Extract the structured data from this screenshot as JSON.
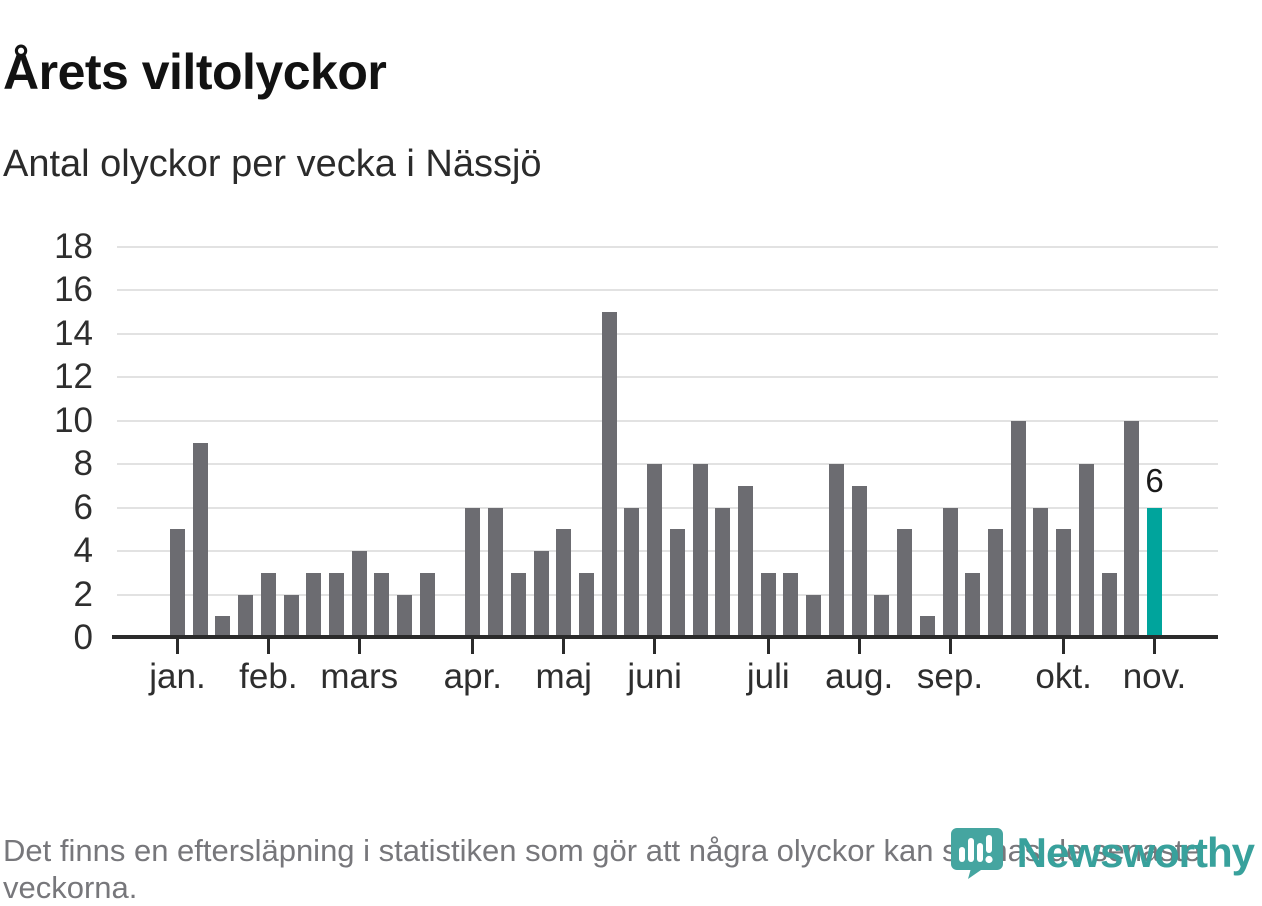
{
  "header": {
    "title": "Årets viltolyckor",
    "subtitle": "Antal olyckor per vecka i Nässjö"
  },
  "chart_data": {
    "type": "bar",
    "title": "Årets viltolyckor",
    "subtitle": "Antal olyckor per vecka i Nässjö",
    "values": [
      5,
      9,
      1,
      2,
      3,
      2,
      3,
      3,
      4,
      3,
      2,
      3,
      0,
      6,
      6,
      3,
      4,
      5,
      3,
      15,
      6,
      8,
      5,
      8,
      6,
      7,
      3,
      3,
      2,
      8,
      7,
      2,
      5,
      1,
      6,
      3,
      5,
      10,
      6,
      5,
      8,
      3,
      10,
      6
    ],
    "highlight_index": 43,
    "highlight_label": "6",
    "ylim": [
      0,
      18
    ],
    "yticks": [
      0,
      2,
      4,
      6,
      8,
      10,
      12,
      14,
      16,
      18
    ],
    "grid": true,
    "legend": "none",
    "month_ticks": [
      {
        "label": "jan.",
        "week_index": 0
      },
      {
        "label": "feb.",
        "week_index": 4
      },
      {
        "label": "mars",
        "week_index": 8
      },
      {
        "label": "apr.",
        "week_index": 13
      },
      {
        "label": "maj",
        "week_index": 17
      },
      {
        "label": "juni",
        "week_index": 21
      },
      {
        "label": "juli",
        "week_index": 26
      },
      {
        "label": "aug.",
        "week_index": 30
      },
      {
        "label": "sep.",
        "week_index": 34
      },
      {
        "label": "okt.",
        "week_index": 39
      },
      {
        "label": "nov.",
        "week_index": 43
      }
    ]
  },
  "footer": {
    "note": "Det finns en eftersläpning i statistiken som gör att några olyckor kan saknas de senaste veckorna.",
    "brand": "Newsworthy"
  },
  "colors": {
    "bar": "#6c6c71",
    "highlight": "#00a49c",
    "gridline": "#e2e2e2",
    "axis": "#2b2b2b",
    "brand_teal": "#45a5a0"
  }
}
